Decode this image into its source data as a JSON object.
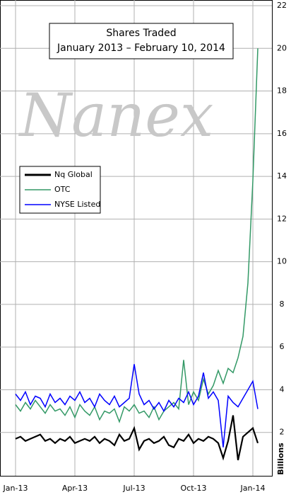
{
  "chart_data": {
    "type": "line",
    "title": "Shares Traded",
    "subtitle": "January 2013 – February 10, 2014",
    "watermark": "Nanex",
    "y_label": "Billions",
    "x": [
      0,
      0.25,
      0.5,
      0.75,
      1,
      1.25,
      1.5,
      1.75,
      2,
      2.25,
      2.5,
      2.75,
      3,
      3.25,
      3.5,
      3.75,
      4,
      4.25,
      4.5,
      4.75,
      5,
      5.25,
      5.5,
      5.75,
      6,
      6.25,
      6.5,
      6.75,
      7,
      7.25,
      7.5,
      7.75,
      8,
      8.25,
      8.5,
      8.75,
      9,
      9.25,
      9.5,
      9.75,
      10,
      10.25,
      10.5,
      10.75,
      11,
      11.25,
      11.5,
      11.75,
      12,
      12.25
    ],
    "series": [
      {
        "name": "Nq Global",
        "color": "#000000",
        "values": [
          1.7,
          1.8,
          1.6,
          1.7,
          1.8,
          1.9,
          1.6,
          1.7,
          1.5,
          1.7,
          1.6,
          1.8,
          1.5,
          1.6,
          1.7,
          1.6,
          1.8,
          1.5,
          1.7,
          1.6,
          1.4,
          1.9,
          1.6,
          1.7,
          2.2,
          1.2,
          1.6,
          1.7,
          1.5,
          1.6,
          1.8,
          1.4,
          1.3,
          1.7,
          1.6,
          1.9,
          1.5,
          1.7,
          1.6,
          1.8,
          1.7,
          1.5,
          0.8,
          1.6,
          2.8,
          0.7,
          1.8,
          2.0,
          2.2,
          1.5
        ]
      },
      {
        "name": "OTC",
        "color": "#339966",
        "values": [
          3.3,
          3.0,
          3.4,
          3.1,
          3.5,
          3.2,
          2.9,
          3.3,
          3.0,
          3.1,
          2.8,
          3.2,
          2.7,
          3.3,
          3.0,
          2.8,
          3.2,
          2.6,
          3.0,
          2.9,
          3.1,
          2.5,
          3.2,
          3.0,
          3.3,
          2.9,
          3.0,
          2.7,
          3.2,
          2.6,
          3.0,
          3.2,
          3.4,
          3.1,
          5.4,
          3.3,
          3.9,
          3.5,
          4.5,
          3.8,
          4.2,
          4.9,
          4.3,
          5.0,
          4.8,
          5.5,
          6.5,
          9.0,
          13.8,
          20.0
        ]
      },
      {
        "name": "NYSE Listed",
        "color": "#0000ff",
        "values": [
          3.8,
          3.5,
          3.9,
          3.3,
          3.7,
          3.6,
          3.2,
          3.8,
          3.4,
          3.6,
          3.3,
          3.7,
          3.5,
          3.9,
          3.4,
          3.6,
          3.2,
          3.8,
          3.5,
          3.3,
          3.7,
          3.2,
          3.4,
          3.6,
          5.2,
          3.8,
          3.3,
          3.5,
          3.1,
          3.4,
          3.0,
          3.5,
          3.2,
          3.6,
          3.4,
          3.9,
          3.3,
          3.7,
          4.8,
          3.6,
          3.9,
          3.5,
          1.3,
          3.7,
          3.4,
          3.2,
          3.6,
          4.0,
          4.4,
          3.1
        ]
      }
    ],
    "xlim": [
      0,
      13
    ],
    "xticks": [
      {
        "value": 0,
        "label": "Jan-13"
      },
      {
        "value": 3,
        "label": "Apr-13"
      },
      {
        "value": 6,
        "label": "Jul-13"
      },
      {
        "value": 9,
        "label": "Oct-13"
      },
      {
        "value": 12,
        "label": "Jan-14"
      }
    ],
    "ylim": [
      0,
      22
    ],
    "yticks": [
      2,
      4,
      6,
      8,
      10,
      12,
      14,
      16,
      18,
      20,
      22
    ],
    "grid": true,
    "legend": "left"
  }
}
